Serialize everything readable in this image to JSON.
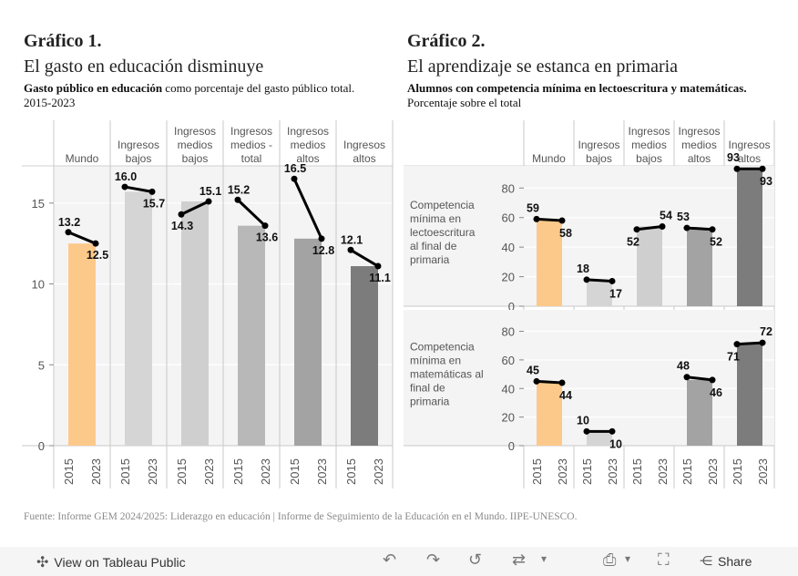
{
  "chart1": {
    "title": "Gráfico 1.",
    "headline": "El gasto en educación disminuye",
    "subtitle_bold": "Gasto público en educación",
    "subtitle_rest": " como porcentaje del gasto público total. 2015-2023"
  },
  "chart2": {
    "title": "Gráfico 2.",
    "headline": "El aprendizaje se estanca en primaria",
    "subtitle_bold": "Alumnos con competencia mínima en lectoescritura y matemáticas.",
    "subtitle_rest": " Porcentaje sobre el total"
  },
  "colors": {
    "mundo": "#fdc98b",
    "bajos": "#d5d5d5",
    "medios_bajos": "#cfcfcf",
    "medios_total": "#b8b8b8",
    "medios_altos": "#a3a3a3",
    "altos": "#7c7c7c",
    "line": "#000000"
  },
  "chart_data": [
    {
      "type": "bar",
      "title": "Gasto público en educación",
      "categories": [
        "Mundo",
        "Ingresos bajos",
        "Ingresos medios bajos",
        "Ingresos medios - total",
        "Ingresos medios altos",
        "Ingresos altos"
      ],
      "x": [
        "2015",
        "2023"
      ],
      "ylim": [
        0,
        17.3
      ],
      "yticks": [
        0,
        5,
        10,
        15
      ],
      "series": [
        {
          "name": "2015",
          "values": [
            13.2,
            16.0,
            14.3,
            15.2,
            16.5,
            12.1
          ],
          "labels": [
            "13.2",
            "16.0",
            "14.3",
            "15.2",
            "16.5",
            "12.1"
          ]
        },
        {
          "name": "2023",
          "values": [
            12.5,
            15.7,
            15.1,
            13.6,
            12.8,
            11.1
          ],
          "labels": [
            "12.5",
            "15.7",
            "15.1",
            "13.6",
            "12.8",
            "11.1"
          ]
        }
      ]
    },
    {
      "type": "bar",
      "title": "Alumnos con competencia mínima",
      "categories": [
        "Mundo",
        "Ingresos bajos",
        "Ingresos medios bajos",
        "Ingresos medios altos",
        "Ingresos altos"
      ],
      "x": [
        "2015",
        "2023"
      ],
      "ylim": [
        0,
        95
      ],
      "yticks": [
        0,
        20,
        40,
        60,
        80
      ],
      "panels": [
        {
          "label": "Competencia mínima en lectoescritura al final de primaria",
          "series": [
            {
              "name": "2015",
              "values": [
                59,
                18,
                52,
                53,
                93
              ]
            },
            {
              "name": "2023",
              "values": [
                58,
                17,
                54,
                52,
                93
              ]
            }
          ]
        },
        {
          "label": "Competencia mínima en matemáticas al final de primaria",
          "series": [
            {
              "name": "2015",
              "values": [
                45,
                10,
                null,
                48,
                71
              ]
            },
            {
              "name": "2023",
              "values": [
                44,
                10,
                null,
                46,
                72
              ]
            }
          ]
        }
      ]
    }
  ],
  "source": "Fuente: Informe GEM 2024/2025: Liderazgo en educación | Informe de Seguimiento de la Educación en el Mundo. IIPE-UNESCO.",
  "toolbar": {
    "view_label": "View on Tableau Public",
    "share_label": "Share"
  }
}
